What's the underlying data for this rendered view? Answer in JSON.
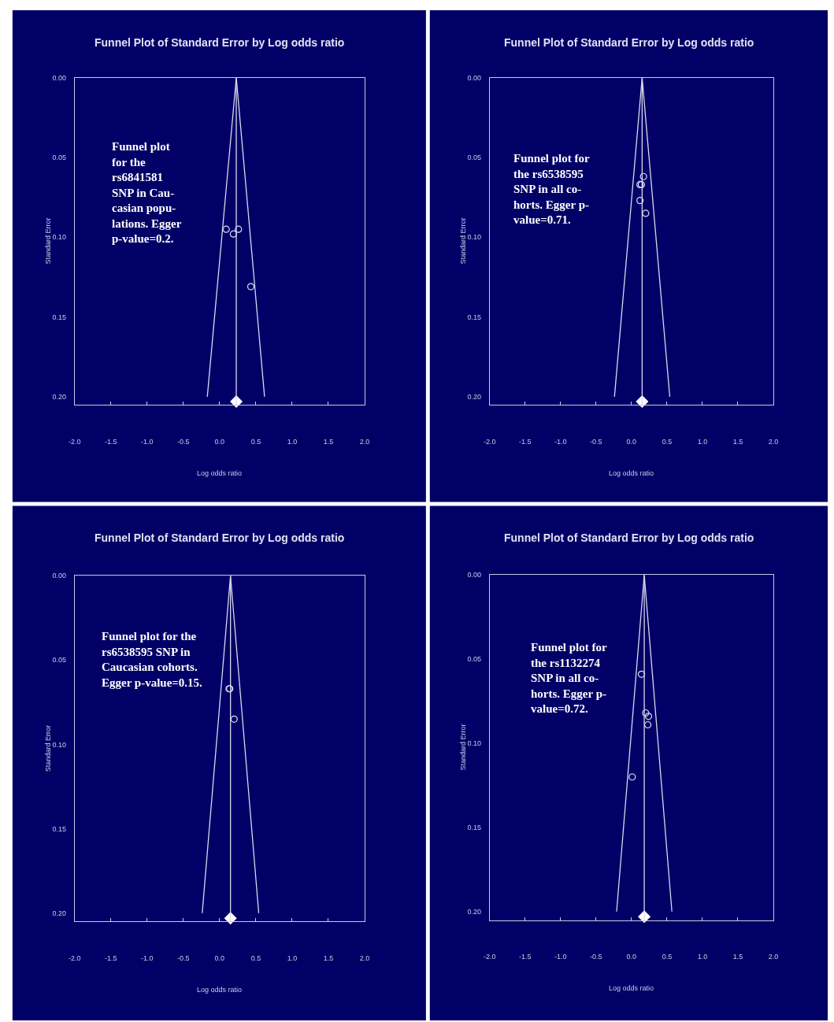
{
  "chart_data": [
    {
      "type": "scatter",
      "title": "Funnel Plot of Standard Error by Log odds ratio",
      "xlabel": "Log odds ratio",
      "ylabel": "Standard Error",
      "xlim": [
        -2,
        2
      ],
      "xticks": [
        {
          "value": -2,
          "label": "-2.0"
        },
        {
          "value": -1.5,
          "label": "-1.5"
        },
        {
          "value": -1,
          "label": "-1.0"
        },
        {
          "value": -0.5,
          "label": "-0.5"
        },
        {
          "value": 0,
          "label": "0.0"
        },
        {
          "value": 0.5,
          "label": "0.5"
        },
        {
          "value": 1,
          "label": "1.0"
        },
        {
          "value": 1.5,
          "label": "1.5"
        },
        {
          "value": 2,
          "label": "2.0"
        }
      ],
      "ylim": [
        0.205,
        0
      ],
      "yticks": [
        {
          "value": 0,
          "label": "0.00"
        },
        {
          "value": 0.05,
          "label": "0.05"
        },
        {
          "value": 0.1,
          "label": "0.10"
        },
        {
          "value": 0.15,
          "label": "0.15"
        },
        {
          "value": 0.2,
          "label": "0.20"
        }
      ],
      "series": [
        {
          "type": "scatter",
          "marker": "circle",
          "color": "#d8d8f0",
          "x": [
            0.09,
            0.19,
            0.26,
            0.43
          ],
          "values": [
            0.095,
            0.098,
            0.095,
            0.131
          ]
        },
        {
          "type": "line",
          "marker": "none",
          "color": "#d8d8f0",
          "x": [
            -0.17,
            0.23,
            0.62
          ],
          "values": [
            0.2,
            0,
            0.2
          ]
        },
        {
          "type": "scatter",
          "marker": "diamond",
          "color": "#ffffff",
          "x": [
            0.23
          ],
          "values": [
            0.203
          ]
        }
      ],
      "ref_lines": [
        {
          "axis": "x",
          "value": 0.23,
          "color": "#d8d8f0"
        }
      ],
      "annotations": [
        "Funnel plot\nfor the\nrs6841581\nSNP in Cau-\ncasian popu-\nlations. Egger\np-value=0.2."
      ]
    },
    {
      "type": "scatter",
      "title": "Funnel Plot of Standard Error by Log odds ratio",
      "xlabel": "Log odds ratio",
      "ylabel": "Standard Error",
      "xlim": [
        -2,
        2
      ],
      "xticks": [
        {
          "value": -2,
          "label": "-2.0"
        },
        {
          "value": -1.5,
          "label": "-1.5"
        },
        {
          "value": -1,
          "label": "-1.0"
        },
        {
          "value": -0.5,
          "label": "-0.5"
        },
        {
          "value": 0,
          "label": "0.0"
        },
        {
          "value": 0.5,
          "label": "0.5"
        },
        {
          "value": 1,
          "label": "1.0"
        },
        {
          "value": 1.5,
          "label": "1.5"
        },
        {
          "value": 2,
          "label": "2.0"
        }
      ],
      "ylim": [
        0.205,
        0
      ],
      "yticks": [
        {
          "value": 0,
          "label": "0.00"
        },
        {
          "value": 0.05,
          "label": "0.05"
        },
        {
          "value": 0.1,
          "label": "0.10"
        },
        {
          "value": 0.15,
          "label": "0.15"
        },
        {
          "value": 0.2,
          "label": "0.20"
        }
      ],
      "series": [
        {
          "type": "scatter",
          "marker": "circle",
          "color": "#d8d8f0",
          "x": [
            0.17,
            0.12,
            0.14,
            0.12,
            0.2
          ],
          "values": [
            0.062,
            0.067,
            0.067,
            0.077,
            0.085
          ]
        },
        {
          "type": "line",
          "marker": "none",
          "color": "#d8d8f0",
          "x": [
            -0.24,
            0.15,
            0.54
          ],
          "values": [
            0.2,
            0,
            0.2
          ]
        },
        {
          "type": "scatter",
          "marker": "diamond",
          "color": "#ffffff",
          "x": [
            0.15
          ],
          "values": [
            0.203
          ]
        }
      ],
      "ref_lines": [
        {
          "axis": "x",
          "value": 0.15,
          "color": "#d8d8f0"
        }
      ],
      "annotations": [
        "Funnel plot for\nthe rs6538595\nSNP in all co-\nhorts. Egger p-\nvalue=0.71."
      ]
    },
    {
      "type": "scatter",
      "title": "Funnel Plot of Standard Error by Log odds ratio",
      "xlabel": "Log odds ratio",
      "ylabel": "Standard Error",
      "xlim": [
        -2,
        2
      ],
      "xticks": [
        {
          "value": -2,
          "label": "-2.0"
        },
        {
          "value": -1.5,
          "label": "-1.5"
        },
        {
          "value": -1,
          "label": "-1.0"
        },
        {
          "value": -0.5,
          "label": "-0.5"
        },
        {
          "value": 0,
          "label": "0.0"
        },
        {
          "value": 0.5,
          "label": "0.5"
        },
        {
          "value": 1,
          "label": "1.0"
        },
        {
          "value": 1.5,
          "label": "1.5"
        },
        {
          "value": 2,
          "label": "2.0"
        }
      ],
      "ylim": [
        0.205,
        0
      ],
      "yticks": [
        {
          "value": 0,
          "label": "0.00"
        },
        {
          "value": 0.05,
          "label": "0.05"
        },
        {
          "value": 0.1,
          "label": "0.10"
        },
        {
          "value": 0.15,
          "label": "0.15"
        },
        {
          "value": 0.2,
          "label": "0.20"
        }
      ],
      "series": [
        {
          "type": "scatter",
          "marker": "circle",
          "color": "#d8d8f0",
          "x": [
            0.13,
            0.14,
            0.2
          ],
          "values": [
            0.067,
            0.067,
            0.085
          ]
        },
        {
          "type": "line",
          "marker": "none",
          "color": "#d8d8f0",
          "x": [
            -0.24,
            0.15,
            0.54
          ],
          "values": [
            0.2,
            0,
            0.2
          ]
        },
        {
          "type": "scatter",
          "marker": "diamond",
          "color": "#ffffff",
          "x": [
            0.15
          ],
          "values": [
            0.203
          ]
        }
      ],
      "ref_lines": [
        {
          "axis": "x",
          "value": 0.15,
          "color": "#d8d8f0"
        }
      ],
      "annotations": [
        "Funnel plot for the\nrs6538595 SNP in\nCaucasian cohorts.\nEgger p-value=0.15."
      ]
    },
    {
      "type": "scatter",
      "title": "Funnel Plot of Standard Error by Log odds ratio",
      "xlabel": "Log odds ratio",
      "ylabel": "Standard Error",
      "xlim": [
        -2,
        2
      ],
      "xticks": [
        {
          "value": -2,
          "label": "-2.0"
        },
        {
          "value": -1.5,
          "label": "-1.5"
        },
        {
          "value": -1,
          "label": "-1.0"
        },
        {
          "value": -0.5,
          "label": "-0.5"
        },
        {
          "value": 0,
          "label": "0.0"
        },
        {
          "value": 0.5,
          "label": "0.5"
        },
        {
          "value": 1,
          "label": "1.0"
        },
        {
          "value": 1.5,
          "label": "1.5"
        },
        {
          "value": 2,
          "label": "2.0"
        }
      ],
      "ylim": [
        0.205,
        0
      ],
      "yticks": [
        {
          "value": 0,
          "label": "0.00"
        },
        {
          "value": 0.05,
          "label": "0.05"
        },
        {
          "value": 0.1,
          "label": "0.10"
        },
        {
          "value": 0.15,
          "label": "0.15"
        },
        {
          "value": 0.2,
          "label": "0.20"
        }
      ],
      "series": [
        {
          "type": "scatter",
          "marker": "circle",
          "color": "#d8d8f0",
          "x": [
            0.14,
            0.2,
            0.24,
            0.23,
            0.01
          ],
          "values": [
            0.059,
            0.082,
            0.084,
            0.089,
            0.12
          ]
        },
        {
          "type": "line",
          "marker": "none",
          "color": "#d8d8f0",
          "x": [
            -0.21,
            0.18,
            0.57
          ],
          "values": [
            0.2,
            0,
            0.2
          ]
        },
        {
          "type": "scatter",
          "marker": "diamond",
          "color": "#ffffff",
          "x": [
            0.18
          ],
          "values": [
            0.203
          ]
        }
      ],
      "ref_lines": [
        {
          "axis": "x",
          "value": 0.18,
          "color": "#d8d8f0"
        }
      ],
      "annotations": [
        "Funnel plot for\nthe rs1132274\nSNP in all co-\nhorts. Egger p-\nvalue=0.72."
      ]
    }
  ]
}
